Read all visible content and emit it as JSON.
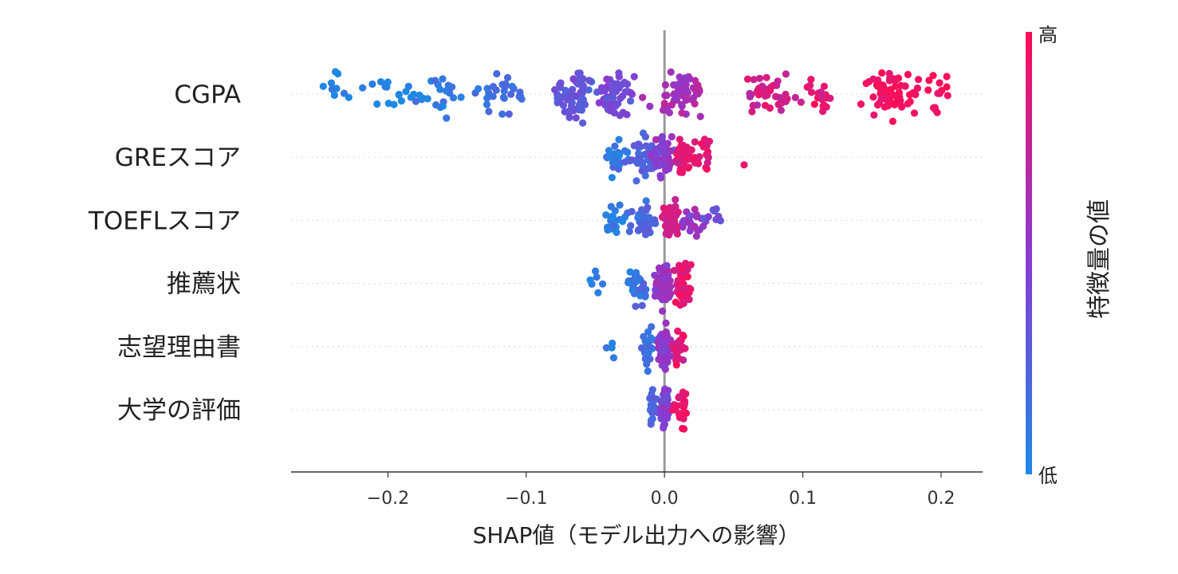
{
  "chart_data": {
    "type": "scatter",
    "subtype": "shap-beeswarm",
    "title": "",
    "xlabel": "SHAP値（モデル出力への影響）",
    "ylabel": "",
    "xlim": [
      -0.27,
      0.23
    ],
    "xticks": [
      -0.2,
      -0.1,
      0.0,
      0.1,
      0.2
    ],
    "xtick_labels": [
      "−0.2",
      "−0.1",
      "0.0",
      "0.1",
      "0.2"
    ],
    "zero_line": true,
    "grid": false,
    "features": [
      {
        "name": "CGPA",
        "min": -0.25,
        "max": 0.21,
        "spread": 0.05,
        "clusters": [
          {
            "x": -0.24,
            "w": 0.012,
            "n": 10,
            "v": 0.0
          },
          {
            "x": -0.2,
            "w": 0.02,
            "n": 14,
            "v": 0.03
          },
          {
            "x": -0.16,
            "w": 0.025,
            "n": 24,
            "v": 0.07
          },
          {
            "x": -0.12,
            "w": 0.02,
            "n": 26,
            "v": 0.18
          },
          {
            "x": -0.065,
            "w": 0.012,
            "n": 60,
            "v": 0.32
          },
          {
            "x": -0.035,
            "w": 0.012,
            "n": 56,
            "v": 0.4
          },
          {
            "x": 0.01,
            "w": 0.018,
            "n": 60,
            "v": 0.62
          },
          {
            "x": 0.07,
            "w": 0.02,
            "n": 40,
            "v": 0.8
          },
          {
            "x": 0.11,
            "w": 0.015,
            "n": 20,
            "v": 0.88
          },
          {
            "x": 0.165,
            "w": 0.018,
            "n": 70,
            "v": 0.97
          },
          {
            "x": 0.195,
            "w": 0.008,
            "n": 14,
            "v": 0.99
          }
        ]
      },
      {
        "name": "GREスコア",
        "min": -0.05,
        "max": 0.06,
        "spread": 0.04,
        "clusters": [
          {
            "x": -0.035,
            "w": 0.009,
            "n": 30,
            "v": 0.06
          },
          {
            "x": -0.015,
            "w": 0.009,
            "n": 50,
            "v": 0.25
          },
          {
            "x": 0.0,
            "w": 0.008,
            "n": 45,
            "v": 0.5
          },
          {
            "x": 0.015,
            "w": 0.009,
            "n": 55,
            "v": 0.88
          },
          {
            "x": 0.03,
            "w": 0.006,
            "n": 14,
            "v": 0.92
          },
          {
            "x": 0.057,
            "w": 0.001,
            "n": 1,
            "v": 0.95
          }
        ]
      },
      {
        "name": "TOEFLスコア",
        "min": -0.047,
        "max": 0.043,
        "spread": 0.03,
        "clusters": [
          {
            "x": -0.035,
            "w": 0.009,
            "n": 24,
            "v": 0.05
          },
          {
            "x": -0.015,
            "w": 0.008,
            "n": 40,
            "v": 0.22
          },
          {
            "x": 0.005,
            "w": 0.006,
            "n": 60,
            "v": 0.82
          },
          {
            "x": 0.02,
            "w": 0.008,
            "n": 24,
            "v": 0.55
          },
          {
            "x": 0.035,
            "w": 0.006,
            "n": 8,
            "v": 0.35
          }
        ]
      },
      {
        "name": "推薦状",
        "min": -0.058,
        "max": 0.025,
        "spread": 0.045,
        "clusters": [
          {
            "x": -0.05,
            "w": 0.006,
            "n": 6,
            "v": 0.05
          },
          {
            "x": -0.02,
            "w": 0.007,
            "n": 30,
            "v": 0.12
          },
          {
            "x": 0.0,
            "w": 0.006,
            "n": 70,
            "v": 0.55
          },
          {
            "x": 0.014,
            "w": 0.006,
            "n": 44,
            "v": 0.9
          }
        ]
      },
      {
        "name": "志望理由書",
        "min": -0.042,
        "max": 0.015,
        "spread": 0.04,
        "clusters": [
          {
            "x": -0.038,
            "w": 0.003,
            "n": 4,
            "v": 0.05
          },
          {
            "x": -0.012,
            "w": 0.005,
            "n": 24,
            "v": 0.15
          },
          {
            "x": 0.0,
            "w": 0.004,
            "n": 80,
            "v": 0.55
          },
          {
            "x": 0.01,
            "w": 0.004,
            "n": 30,
            "v": 0.88
          }
        ]
      },
      {
        "name": "大学の評価",
        "min": -0.015,
        "max": 0.02,
        "spread": 0.038,
        "clusters": [
          {
            "x": -0.008,
            "w": 0.004,
            "n": 20,
            "v": 0.2
          },
          {
            "x": 0.0,
            "w": 0.003,
            "n": 70,
            "v": 0.45
          },
          {
            "x": 0.012,
            "w": 0.005,
            "n": 24,
            "v": 0.92
          }
        ]
      }
    ],
    "colorbar": {
      "title": "特徴量の値",
      "high_label": "高",
      "low_label": "低",
      "low_color": "#1e88e5",
      "high_color": "#ff0d57"
    }
  }
}
